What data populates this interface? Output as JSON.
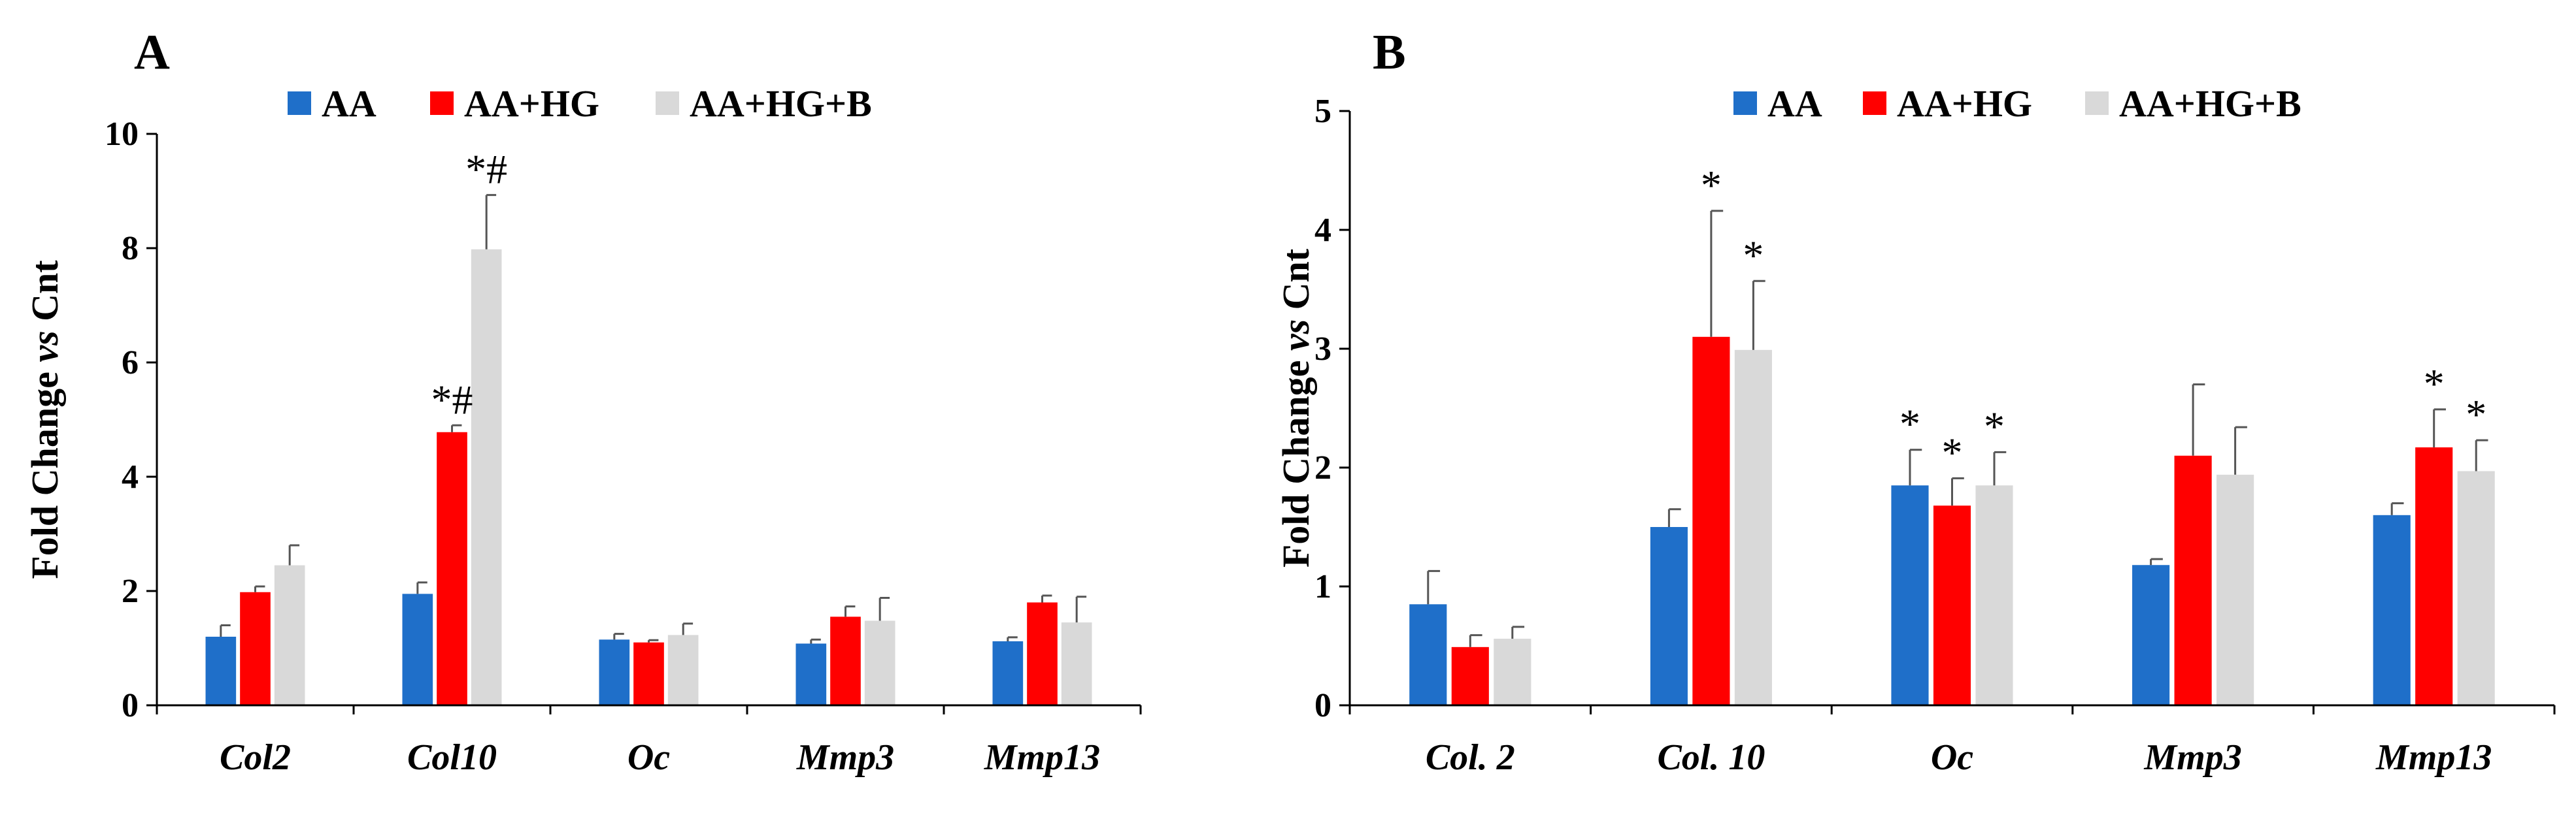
{
  "chart_data": [
    {
      "type": "bar",
      "panel": "A",
      "title": "",
      "xlabel": "",
      "ylabel_parts": [
        "Fold Change ",
        "vs",
        " Cnt"
      ],
      "categories": [
        "Col2",
        "Col10",
        "Oc",
        "Mmp3",
        "Mmp13"
      ],
      "ylim": [
        0,
        10
      ],
      "yticks": [
        "0",
        "2",
        "4",
        "6",
        "8",
        "10"
      ],
      "legend_position": "top-center",
      "series": [
        {
          "name": "AA",
          "color": "#1f6fc9",
          "values": [
            1.2,
            1.95,
            1.15,
            1.08,
            1.12
          ],
          "errors": [
            0.2,
            0.2,
            0.1,
            0.07,
            0.07
          ]
        },
        {
          "name": "AA+HG",
          "color": "#ff0000",
          "values": [
            1.98,
            4.78,
            1.1,
            1.55,
            1.8
          ],
          "errors": [
            0.1,
            0.12,
            0.04,
            0.18,
            0.12
          ]
        },
        {
          "name": "AA+HG+B",
          "color": "#d9d9d9",
          "values": [
            2.45,
            7.98,
            1.23,
            1.48,
            1.45
          ],
          "errors": [
            0.35,
            0.95,
            0.2,
            0.4,
            0.45
          ]
        }
      ],
      "annotations": [
        {
          "category": 1,
          "series": 1,
          "text": "*#"
        },
        {
          "category": 1,
          "series": 2,
          "text": "*#"
        }
      ]
    },
    {
      "type": "bar",
      "panel": "B",
      "title": "",
      "xlabel": "",
      "ylabel_parts": [
        "Fold Change ",
        "vs",
        " Cnt"
      ],
      "categories": [
        "Col. 2",
        "Col. 10",
        "Oc",
        "Mmp3",
        "Mmp13"
      ],
      "ylim": [
        0,
        5
      ],
      "yticks": [
        "0",
        "1",
        "2",
        "3",
        "4",
        "5"
      ],
      "legend_position": "top-center",
      "series": [
        {
          "name": "AA",
          "color": "#1f6fc9",
          "values": [
            0.85,
            1.5,
            1.85,
            1.18,
            1.6
          ],
          "errors": [
            0.28,
            0.15,
            0.3,
            0.05,
            0.1
          ]
        },
        {
          "name": "AA+HG",
          "color": "#ff0000",
          "values": [
            0.49,
            3.1,
            1.68,
            2.1,
            2.17
          ],
          "errors": [
            0.1,
            1.06,
            0.23,
            0.6,
            0.32
          ]
        },
        {
          "name": "AA+HG+B",
          "color": "#d9d9d9",
          "values": [
            0.56,
            2.99,
            1.85,
            1.94,
            1.97
          ],
          "errors": [
            0.1,
            0.58,
            0.28,
            0.4,
            0.26
          ]
        }
      ],
      "annotations": [
        {
          "category": 1,
          "series": 1,
          "text": "*"
        },
        {
          "category": 1,
          "series": 2,
          "text": "*"
        },
        {
          "category": 2,
          "series": 0,
          "text": "*"
        },
        {
          "category": 2,
          "series": 1,
          "text": "*"
        },
        {
          "category": 2,
          "series": 2,
          "text": "*"
        },
        {
          "category": 4,
          "series": 1,
          "text": "*"
        },
        {
          "category": 4,
          "series": 2,
          "text": "*"
        }
      ]
    }
  ]
}
